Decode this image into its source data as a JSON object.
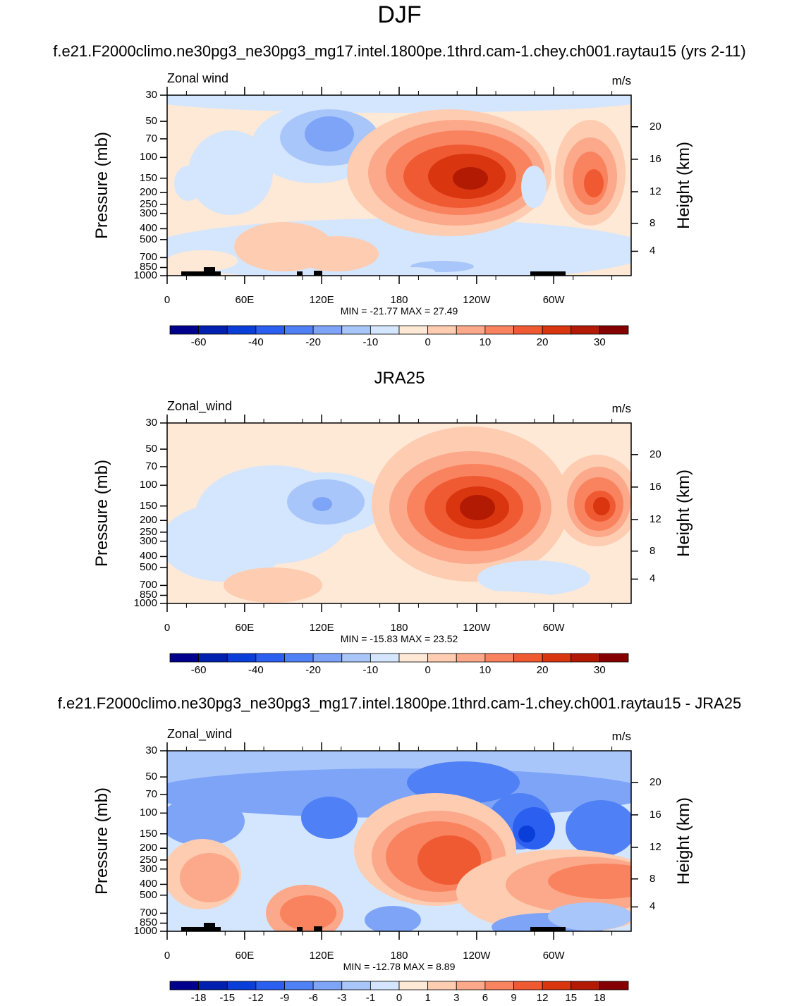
{
  "page": {
    "main_title": "DJF"
  },
  "chart_data": [
    {
      "type": "heatmap",
      "panel_title": "f.e21.F2000climo.ne30pg3_ne30pg3_mg17.intel.1800pe.1thrd.cam-1.chey.ch001.raytau15 (yrs 2-11)",
      "left_label": "Zonal wind",
      "units": "m/s",
      "ylabel_left": "Pressure (mb)",
      "ylabel_right": "Height (km)",
      "x_ticks": [
        "0",
        "60E",
        "120E",
        "180",
        "120W",
        "60W"
      ],
      "pressure_ticks": [
        "30",
        "50",
        "70",
        "100",
        "150",
        "200",
        "250",
        "300",
        "400",
        "500",
        "700",
        "850",
        "1000"
      ],
      "height_ticks": [
        "20",
        "16",
        "12",
        "8",
        "4"
      ],
      "min_max": "MIN = -21.77  MAX =  27.49",
      "colorbar_labels": [
        "-60",
        "-40",
        "-20",
        "-10",
        "0",
        "10",
        "20",
        "30"
      ],
      "colorbar_colors": [
        "#00008c",
        "#0020b0",
        "#0a3ed8",
        "#2b5ff0",
        "#4f80f5",
        "#7ea4f8",
        "#a9c6fb",
        "#d4e6fd",
        "#fee8d6",
        "#fdccb1",
        "#fca88a",
        "#f9835f",
        "#f05a33",
        "#d9350f",
        "#b21a04",
        "#850000"
      ]
    },
    {
      "type": "heatmap",
      "panel_title": "JRA25",
      "left_label": "Zonal_wind",
      "units": "m/s",
      "ylabel_left": "Pressure (mb)",
      "ylabel_right": "Height (km)",
      "x_ticks": [
        "0",
        "60E",
        "120E",
        "180",
        "120W",
        "60W"
      ],
      "pressure_ticks": [
        "30",
        "50",
        "70",
        "100",
        "150",
        "200",
        "250",
        "300",
        "400",
        "500",
        "700",
        "850",
        "1000"
      ],
      "height_ticks": [
        "20",
        "16",
        "12",
        "8",
        "4"
      ],
      "min_max": "MIN = -15.83  MAX =  23.52",
      "colorbar_labels": [
        "-60",
        "-40",
        "-20",
        "-10",
        "0",
        "10",
        "20",
        "30"
      ],
      "colorbar_colors": [
        "#00008c",
        "#0020b0",
        "#0a3ed8",
        "#2b5ff0",
        "#4f80f5",
        "#7ea4f8",
        "#a9c6fb",
        "#d4e6fd",
        "#fee8d6",
        "#fdccb1",
        "#fca88a",
        "#f9835f",
        "#f05a33",
        "#d9350f",
        "#b21a04",
        "#850000"
      ]
    },
    {
      "type": "heatmap",
      "panel_title": "f.e21.F2000climo.ne30pg3_ne30pg3_mg17.intel.1800pe.1thrd.cam-1.chey.ch001.raytau15 - JRA25",
      "left_label": "Zonal_wind",
      "units": "m/s",
      "ylabel_left": "Pressure (mb)",
      "ylabel_right": "Height (km)",
      "x_ticks": [
        "0",
        "60E",
        "120E",
        "180",
        "120W",
        "60W"
      ],
      "pressure_ticks": [
        "30",
        "50",
        "70",
        "100",
        "150",
        "200",
        "250",
        "300",
        "400",
        "500",
        "700",
        "850",
        "1000"
      ],
      "height_ticks": [
        "20",
        "16",
        "12",
        "8",
        "4"
      ],
      "min_max": "MIN = -12.78  MAX =   8.89",
      "colorbar_labels": [
        "-18",
        "-15",
        "-12",
        "-9",
        "-6",
        "-3",
        "-1",
        "0",
        "1",
        "3",
        "6",
        "9",
        "12",
        "15",
        "18"
      ],
      "colorbar_colors": [
        "#00008c",
        "#0020b0",
        "#0a3ed8",
        "#2b5ff0",
        "#4f80f5",
        "#7ea4f8",
        "#a9c6fb",
        "#d4e6fd",
        "#fee8d6",
        "#fdccb1",
        "#fca88a",
        "#f9835f",
        "#f05a33",
        "#d9350f",
        "#b21a04",
        "#850000"
      ]
    }
  ]
}
